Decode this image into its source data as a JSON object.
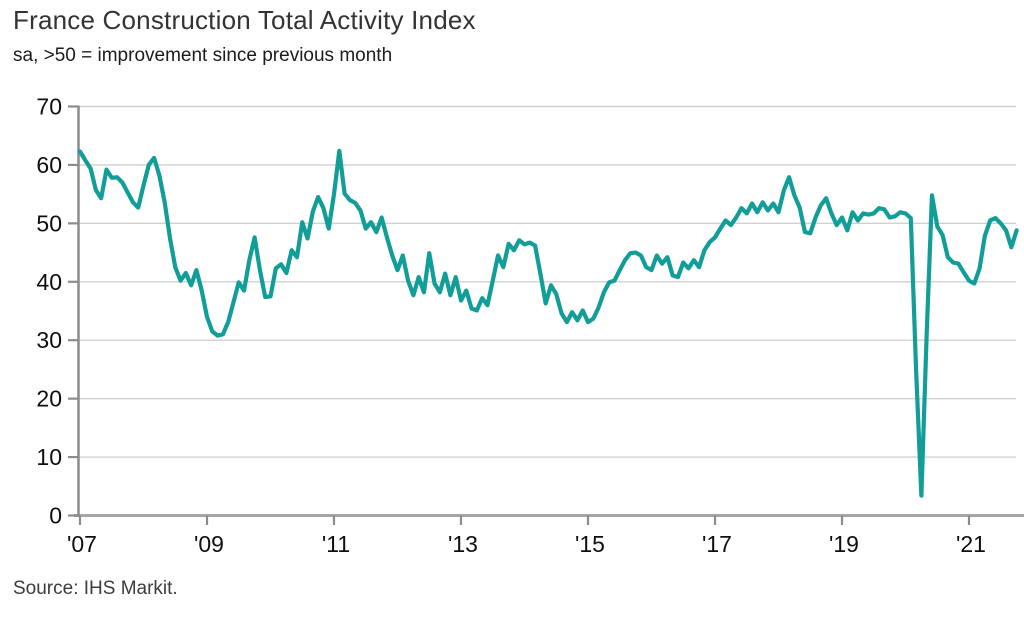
{
  "header": {
    "title": "France Construction Total Activity Index",
    "subtitle": "sa, >50 = improvement since previous month"
  },
  "footer": {
    "source": "Source: IHS Markit."
  },
  "chart_data": {
    "type": "line",
    "title": "France Construction Total Activity Index",
    "subtitle": "sa, >50 = improvement since previous month",
    "source": "Source: IHS Markit.",
    "frequency": "monthly",
    "x_start": "2007-01",
    "x_end": "2021-10",
    "ylim": [
      0,
      70
    ],
    "y_ticks": [
      0,
      10,
      20,
      30,
      40,
      50,
      60,
      70
    ],
    "x_tick_years": [
      2007,
      2009,
      2011,
      2013,
      2015,
      2017,
      2019,
      2021
    ],
    "x_tick_labels": [
      "'07",
      "'09",
      "'11",
      "'13",
      "'15",
      "'17",
      "'19",
      "'21"
    ],
    "grid": "horizontal",
    "legend": "none",
    "line_color": "#129e98",
    "series": [
      {
        "name": "Total Activity Index",
        "color": "#129e98",
        "values": [
          62.3,
          60.8,
          59.4,
          55.7,
          54.3,
          59.2,
          57.8,
          57.9,
          57.0,
          55.3,
          53.6,
          52.7,
          56.5,
          60.0,
          61.2,
          58.2,
          53.6,
          47.5,
          42.5,
          40.2,
          41.5,
          39.4,
          42.0,
          38.5,
          34.0,
          31.5,
          30.8,
          31.0,
          33.1,
          36.5,
          39.9,
          38.5,
          43.7,
          47.6,
          42.0,
          37.4,
          37.5,
          42.3,
          43.0,
          41.5,
          45.4,
          44.2,
          50.2,
          47.4,
          52.0,
          54.5,
          52.6,
          49.1,
          55.0,
          62.4,
          55.1,
          54.0,
          53.5,
          52.2,
          49.1,
          50.2,
          48.5,
          51.0,
          47.6,
          44.5,
          42.0,
          44.5,
          40.2,
          37.7,
          40.8,
          38.2,
          44.9,
          39.7,
          38.2,
          41.4,
          37.7,
          40.8,
          36.8,
          38.5,
          35.4,
          35.1,
          37.2,
          36.0,
          40.2,
          44.5,
          42.5,
          46.5,
          45.4,
          47.1,
          46.4,
          46.7,
          46.2,
          41.4,
          36.3,
          39.4,
          37.9,
          34.6,
          33.1,
          34.8,
          33.4,
          35.1,
          33.1,
          33.7,
          35.6,
          38.2,
          39.9,
          40.2,
          42.0,
          43.7,
          44.9,
          45.0,
          44.5,
          42.5,
          42.0,
          44.5,
          43.1,
          44.2,
          41.1,
          40.8,
          43.3,
          42.3,
          43.7,
          42.5,
          45.4,
          46.8,
          47.6,
          49.1,
          50.5,
          49.7,
          51.0,
          52.6,
          51.7,
          53.4,
          51.9,
          53.6,
          52.2,
          53.4,
          51.9,
          55.6,
          57.9,
          54.8,
          52.7,
          48.5,
          48.3,
          51.0,
          53.1,
          54.3,
          51.7,
          49.7,
          51.0,
          48.8,
          51.9,
          50.5,
          51.7,
          51.5,
          51.7,
          52.6,
          52.4,
          51.0,
          51.2,
          51.9,
          51.7,
          50.9,
          25.0,
          3.4,
          31.0,
          54.8,
          49.5,
          48.0,
          44.2,
          43.3,
          43.1,
          41.6,
          40.2,
          39.7,
          42.3,
          47.9,
          50.5,
          50.9,
          50.0,
          48.8,
          45.9,
          48.8
        ]
      }
    ],
    "colors": {
      "line": "#129e98",
      "gridline": "#d0d0d0",
      "axis": "#8c8c8c",
      "bottom_axis": "#a6a6a6",
      "tick_label": "#0f0f0f"
    }
  }
}
